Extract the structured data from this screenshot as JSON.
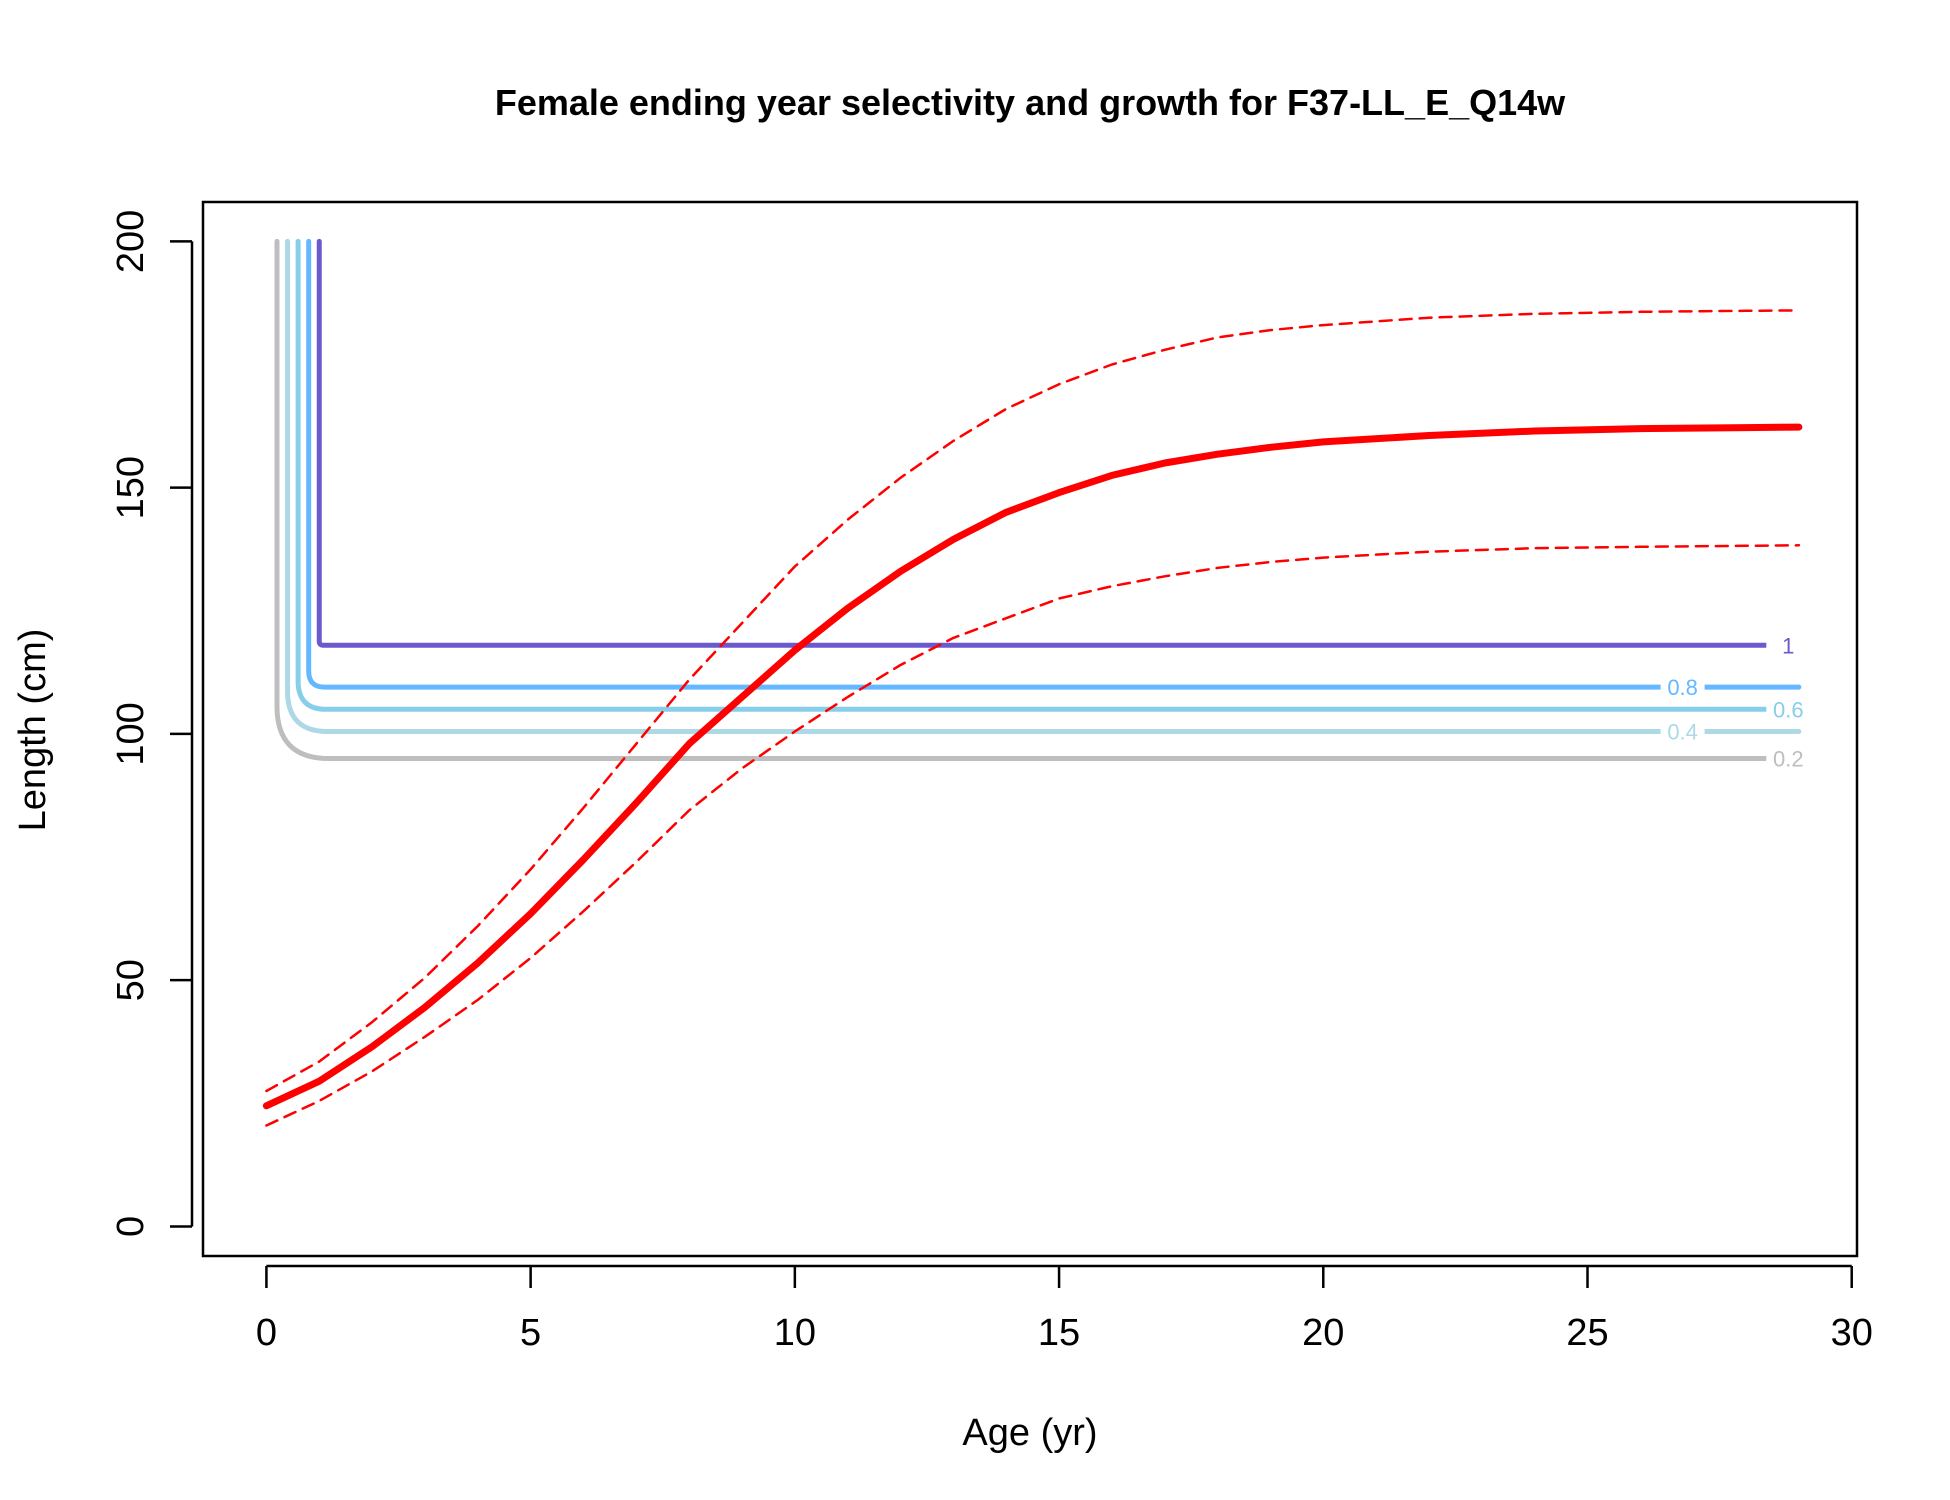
{
  "chart_data": {
    "type": "line",
    "title": "Female ending year selectivity and growth for F37-LL_E_Q14w",
    "xlabel": "Age (yr)",
    "ylabel": "Length (cm)",
    "xlim": [
      -1.2,
      30.1
    ],
    "ylim": [
      -6,
      208
    ],
    "x_ticks": [
      0,
      5,
      10,
      15,
      20,
      25,
      30
    ],
    "y_ticks": [
      0,
      50,
      100,
      150,
      200
    ],
    "grid": false,
    "legend": "none",
    "growth_series": [
      {
        "kind": "mean",
        "color": "#ff0000",
        "x": [
          0,
          1,
          2,
          3,
          4,
          5,
          6,
          7,
          8,
          9,
          10,
          11,
          12,
          13,
          14,
          15,
          16,
          17,
          18,
          19,
          20,
          22,
          24,
          26,
          28,
          29
        ],
        "values": [
          24.5,
          29.5,
          36.5,
          44.5,
          53.5,
          63.5,
          74.5,
          86,
          98,
          107.5,
          117,
          125.5,
          133,
          139.5,
          145,
          149,
          152.5,
          155,
          156.8,
          158.2,
          159.3,
          160.6,
          161.5,
          162,
          162.2,
          162.3
        ]
      },
      {
        "kind": "upper",
        "color": "#ff0000",
        "x": [
          0,
          1,
          2,
          3,
          4,
          5,
          6,
          7,
          8,
          9,
          10,
          11,
          12,
          13,
          14,
          15,
          16,
          17,
          18,
          19,
          20,
          22,
          24,
          26,
          28,
          29
        ],
        "values": [
          27.5,
          33.5,
          41.5,
          50.5,
          61,
          72.5,
          85,
          98,
          111,
          122.5,
          134,
          143.5,
          152,
          159.5,
          166,
          171,
          175,
          178,
          180.5,
          182,
          183,
          184.5,
          185.3,
          185.7,
          185.9,
          186
        ]
      },
      {
        "kind": "lower",
        "color": "#ff0000",
        "x": [
          0,
          1,
          2,
          3,
          4,
          5,
          6,
          7,
          8,
          9,
          10,
          11,
          12,
          13,
          14,
          15,
          16,
          17,
          18,
          19,
          20,
          22,
          24,
          26,
          28,
          29
        ],
        "values": [
          20.5,
          25.5,
          31.5,
          38.5,
          46,
          54.5,
          64,
          74,
          84.5,
          93,
          100.5,
          107.5,
          114,
          119.5,
          123.5,
          127.5,
          130,
          132,
          133.7,
          134.9,
          135.8,
          137,
          137.7,
          138,
          138.2,
          138.3
        ]
      }
    ],
    "selectivity_contours": [
      {
        "level": 1,
        "label": "1",
        "color": "#6a5acd",
        "corner_age": 1.0,
        "length": 118,
        "label_age": 28.8
      },
      {
        "level": 0.8,
        "label": "0.8",
        "color": "#63b8ff",
        "corner_age": 0.8,
        "length": 109.5,
        "label_age": 26.8
      },
      {
        "level": 0.6,
        "label": "0.6",
        "color": "#87ceeb",
        "corner_age": 0.6,
        "length": 105,
        "label_age": 28.8
      },
      {
        "level": 0.4,
        "label": "0.4",
        "color": "#add8e6",
        "corner_age": 0.4,
        "length": 100.5,
        "label_age": 26.8
      },
      {
        "level": 0.2,
        "label": "0.2",
        "color": "#bebebe",
        "corner_age": 0.2,
        "length": 95,
        "label_age": 28.8
      }
    ]
  }
}
